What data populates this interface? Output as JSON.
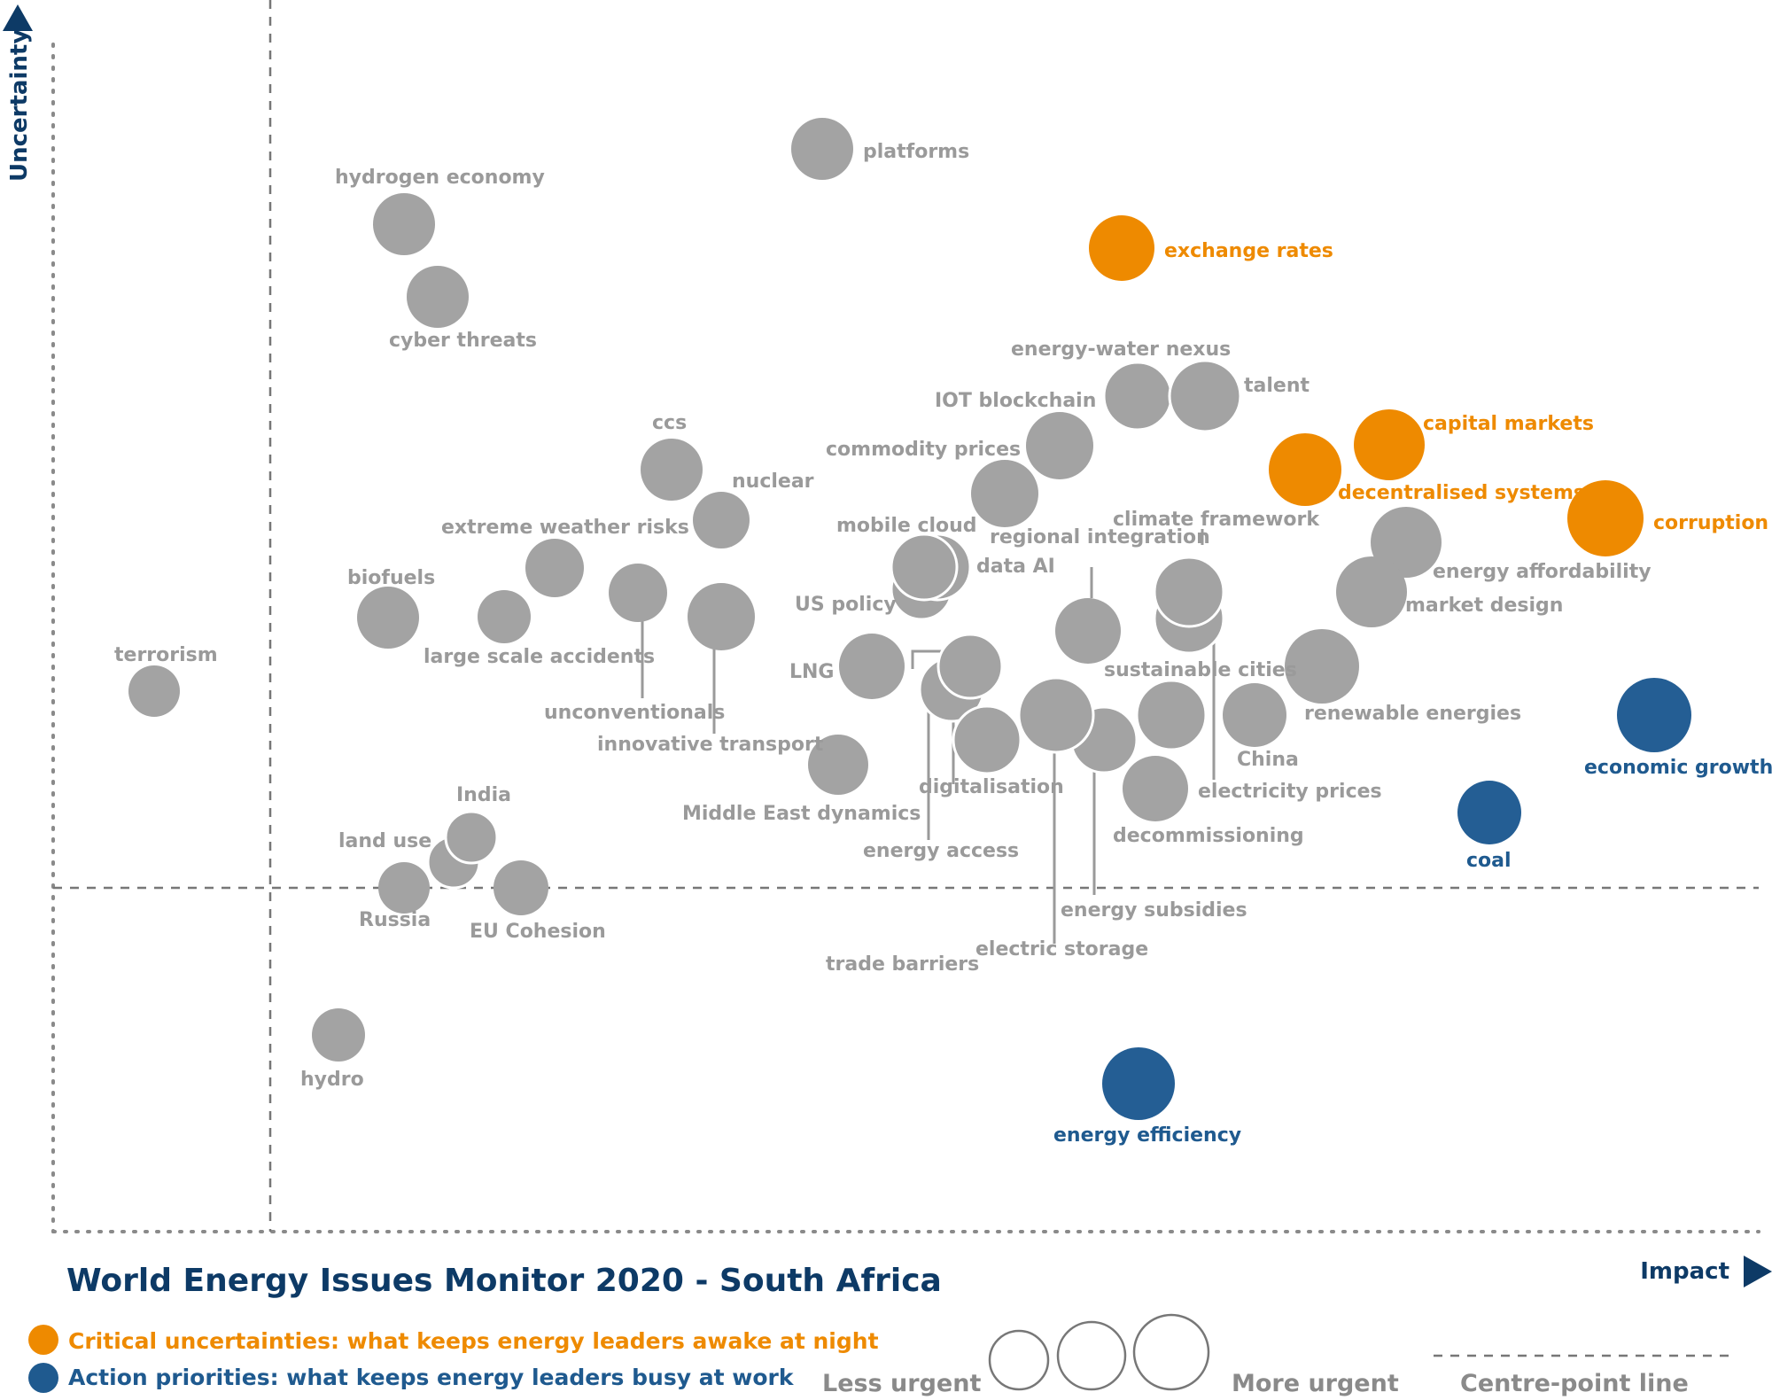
{
  "chart_data": {
    "type": "scatter",
    "title": "World Energy Issues Monitor 2020 - South Africa",
    "xlabel": "Impact",
    "ylabel": "Uncertainty",
    "legend": {
      "critical": "Critical uncertainties: what keeps energy leaders awake at night",
      "action": "Action priorities: what keeps energy leaders busy at work",
      "less_urgent": "Less urgent",
      "more_urgent": "More urgent",
      "centre_line": "Centre-point  line"
    },
    "colors": {
      "grey": "#a3a3a3",
      "orange": "#ee8a00",
      "blue": "#245e94",
      "navy": "#0d3a66"
    },
    "points": [
      {
        "name": "platforms",
        "impact": 0.44,
        "uncertainty": 0.88,
        "urgency": 2,
        "group": "grey"
      },
      {
        "name": "hydrogen economy",
        "impact": 0.2,
        "uncertainty": 0.83,
        "urgency": 2,
        "group": "grey"
      },
      {
        "name": "cyber threats",
        "impact": 0.22,
        "uncertainty": 0.77,
        "urgency": 2,
        "group": "grey"
      },
      {
        "name": "exchange rates",
        "impact": 0.62,
        "uncertainty": 0.8,
        "urgency": 2,
        "group": "orange"
      },
      {
        "name": "energy-water nexus",
        "impact": 0.63,
        "uncertainty": 0.68,
        "urgency": 2,
        "group": "grey"
      },
      {
        "name": "talent",
        "impact": 0.67,
        "uncertainty": 0.68,
        "urgency": 3,
        "group": "grey"
      },
      {
        "name": "IOT blockchain",
        "impact": 0.58,
        "uncertainty": 0.66,
        "urgency": 2,
        "group": "grey"
      },
      {
        "name": "capital markets",
        "impact": 0.78,
        "uncertainty": 0.66,
        "urgency": 2,
        "group": "orange"
      },
      {
        "name": "decentralised systems",
        "impact": 0.73,
        "uncertainty": 0.64,
        "urgency": 2,
        "group": "orange"
      },
      {
        "name": "corruption",
        "impact": 0.92,
        "uncertainty": 0.59,
        "urgency": 3,
        "group": "orange"
      },
      {
        "name": "commodity prices",
        "impact": 0.55,
        "uncertainty": 0.62,
        "urgency": 2,
        "group": "grey"
      },
      {
        "name": "ccs",
        "impact": 0.36,
        "uncertainty": 0.64,
        "urgency": 2,
        "group": "grey"
      },
      {
        "name": "nuclear",
        "impact": 0.39,
        "uncertainty": 0.6,
        "urgency": 1,
        "group": "grey"
      },
      {
        "name": "mobile cloud",
        "impact": 0.51,
        "uncertainty": 0.56,
        "urgency": 2,
        "group": "grey"
      },
      {
        "name": "data AI",
        "impact": 0.5,
        "uncertainty": 0.56,
        "urgency": 2,
        "group": "grey"
      },
      {
        "name": "US policy",
        "impact": 0.5,
        "uncertainty": 0.54,
        "urgency": 1,
        "group": "grey"
      },
      {
        "name": "regional integration",
        "impact": 0.6,
        "uncertainty": 0.51,
        "urgency": 2,
        "group": "grey"
      },
      {
        "name": "climate framework",
        "impact": 0.66,
        "uncertainty": 0.55,
        "urgency": 2,
        "group": "grey"
      },
      {
        "name": "energy affordability",
        "impact": 0.78,
        "uncertainty": 0.58,
        "urgency": 2,
        "group": "grey"
      },
      {
        "name": "market design",
        "impact": 0.76,
        "uncertainty": 0.55,
        "urgency": 2,
        "group": "grey"
      },
      {
        "name": "extreme weather risks",
        "impact": 0.29,
        "uncertainty": 0.57,
        "urgency": 2,
        "group": "grey"
      },
      {
        "name": "biofuels",
        "impact": 0.19,
        "uncertainty": 0.53,
        "urgency": 2,
        "group": "grey"
      },
      {
        "name": "large scale accidents",
        "impact": 0.26,
        "uncertainty": 0.53,
        "urgency": 1,
        "group": "grey"
      },
      {
        "name": "unconventionals",
        "impact": 0.34,
        "uncertainty": 0.56,
        "urgency": 2,
        "group": "grey"
      },
      {
        "name": "innovative transport",
        "impact": 0.39,
        "uncertainty": 0.53,
        "urgency": 3,
        "group": "grey"
      },
      {
        "name": "terrorism",
        "impact": 0.05,
        "uncertainty": 0.46,
        "urgency": 1,
        "group": "grey"
      },
      {
        "name": "LNG",
        "impact": 0.47,
        "uncertainty": 0.48,
        "urgency": 2,
        "group": "grey"
      },
      {
        "name": "trade barriers",
        "impact": 0.53,
        "uncertainty": 0.48,
        "urgency": 2,
        "group": "grey"
      },
      {
        "name": "energy access",
        "impact": 0.52,
        "uncertainty": 0.46,
        "urgency": 2,
        "group": "grey"
      },
      {
        "name": "digitalisation",
        "impact": 0.55,
        "uncertainty": 0.42,
        "urgency": 2,
        "group": "grey"
      },
      {
        "name": "electric storage",
        "impact": 0.59,
        "uncertainty": 0.44,
        "urgency": 3,
        "group": "grey"
      },
      {
        "name": "energy subsidies",
        "impact": 0.62,
        "uncertainty": 0.42,
        "urgency": 2,
        "group": "grey"
      },
      {
        "name": "sustainable cities",
        "impact": 0.66,
        "uncertainty": 0.44,
        "urgency": 2,
        "group": "grey"
      },
      {
        "name": "China",
        "impact": 0.7,
        "uncertainty": 0.44,
        "urgency": 2,
        "group": "grey"
      },
      {
        "name": "electricity prices",
        "impact": 0.66,
        "uncertainty": 0.52,
        "urgency": 2,
        "group": "grey"
      },
      {
        "name": "renewable energies",
        "impact": 0.74,
        "uncertainty": 0.48,
        "urgency": 3,
        "group": "grey"
      },
      {
        "name": "decommissioning",
        "impact": 0.64,
        "uncertainty": 0.38,
        "urgency": 2,
        "group": "grey"
      },
      {
        "name": "Middle East dynamics",
        "impact": 0.46,
        "uncertainty": 0.4,
        "urgency": 2,
        "group": "grey"
      },
      {
        "name": "economic growth",
        "impact": 0.95,
        "uncertainty": 0.44,
        "urgency": 3,
        "group": "blue"
      },
      {
        "name": "coal",
        "impact": 0.85,
        "uncertainty": 0.36,
        "urgency": 2,
        "group": "blue"
      },
      {
        "name": "India",
        "impact": 0.25,
        "uncertainty": 0.33,
        "urgency": 1,
        "group": "grey"
      },
      {
        "name": "land use",
        "impact": 0.24,
        "uncertainty": 0.32,
        "urgency": 1,
        "group": "grey"
      },
      {
        "name": "Russia",
        "impact": 0.2,
        "uncertainty": 0.28,
        "urgency": 1,
        "group": "grey"
      },
      {
        "name": "EU Cohesion",
        "impact": 0.29,
        "uncertainty": 0.28,
        "urgency": 1,
        "group": "grey"
      },
      {
        "name": "hydro",
        "impact": 0.16,
        "uncertainty": 0.16,
        "urgency": 1,
        "group": "grey"
      },
      {
        "name": "energy efficiency",
        "impact": 0.63,
        "uncertainty": 0.12,
        "urgency": 3,
        "group": "blue"
      }
    ]
  }
}
